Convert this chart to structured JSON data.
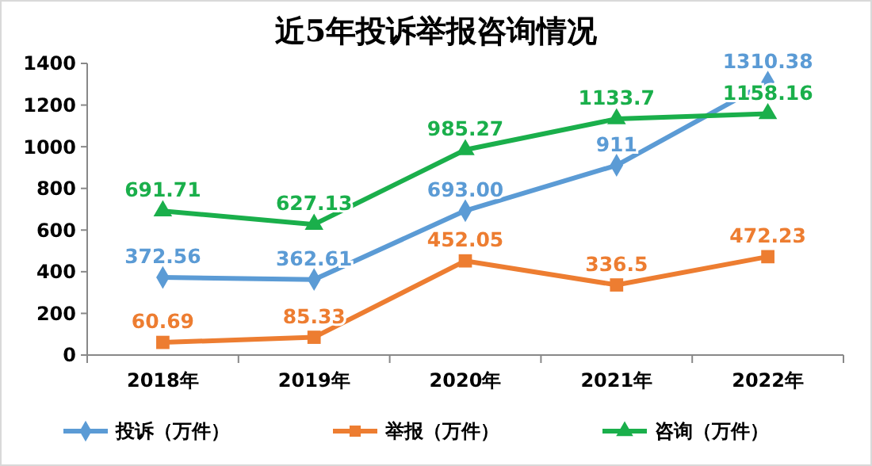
{
  "chart_data": {
    "type": "line",
    "title": "近5年投诉举报咨询情况",
    "categories": [
      "2018年",
      "2019年",
      "2020年",
      "2021年",
      "2022年"
    ],
    "series": [
      {
        "name": "投诉（万件）",
        "color": "#5b9bd5",
        "marker": "diamond",
        "values": [
          372.56,
          362.61,
          693.0,
          911,
          1310.38
        ],
        "value_labels": [
          "372.56",
          "362.61",
          "693.00",
          "911",
          "1310.38"
        ]
      },
      {
        "name": "举报（万件）",
        "color": "#ed7d31",
        "marker": "square",
        "values": [
          60.69,
          85.33,
          452.05,
          336.5,
          472.23
        ],
        "value_labels": [
          "60.69",
          "85.33",
          "452.05",
          "336.5",
          "472.23"
        ]
      },
      {
        "name": "咨询（万件）",
        "color": "#1aaf4b",
        "marker": "triangle",
        "values": [
          691.71,
          627.13,
          985.27,
          1133.7,
          1158.16
        ],
        "value_labels": [
          "691.71",
          "627.13",
          "985.27",
          "1133.7",
          "1158.16"
        ]
      }
    ],
    "ylim": [
      0,
      1400
    ],
    "yticks": [
      0,
      200,
      400,
      600,
      800,
      1000,
      1200,
      1400
    ],
    "grid": false,
    "legend": "bottom",
    "line_style": "solid"
  }
}
